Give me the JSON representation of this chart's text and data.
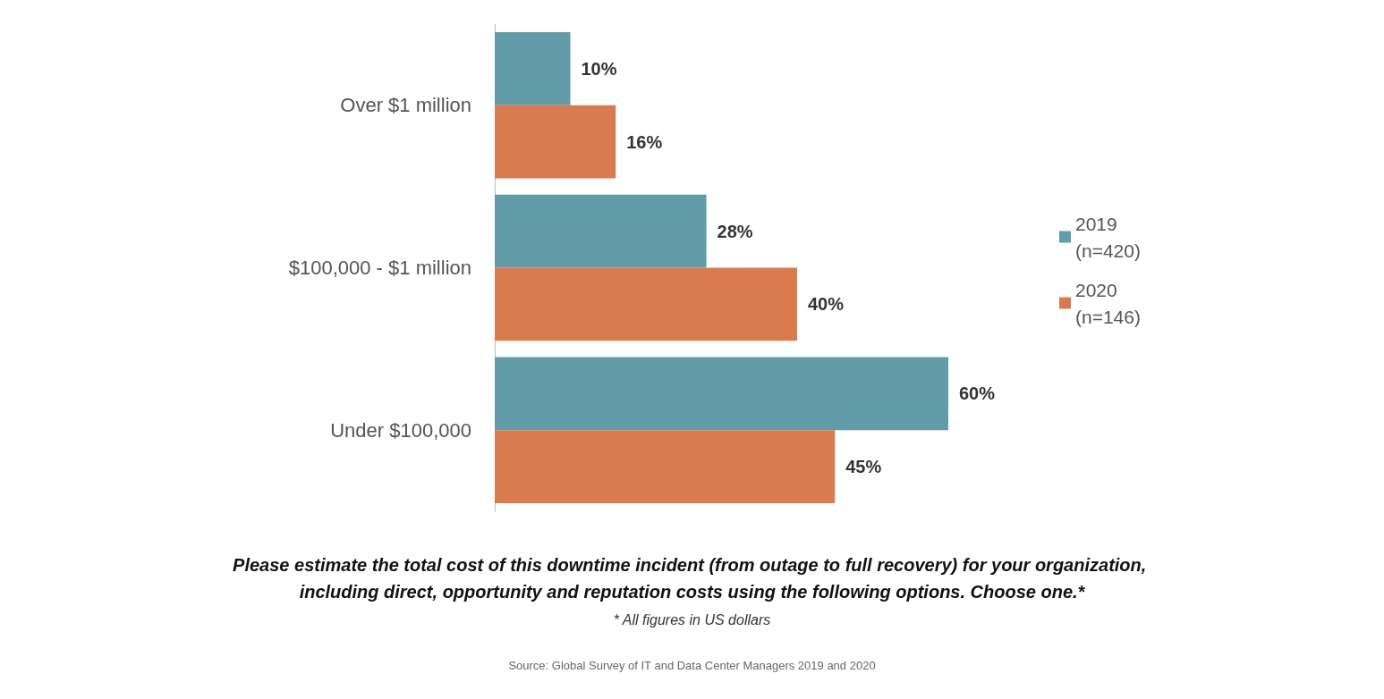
{
  "chart_data": {
    "type": "bar",
    "orientation": "horizontal",
    "title": "Please estimate the total cost of this downtime incident (from outage to full recovery) for your organization, including direct, opportunity and reputation costs using the following options. Choose one.*",
    "subtitle": "* All figures in US dollars",
    "annotations": [
      "Source: Global Survey of IT and Data Center Managers 2019 and 2020"
    ],
    "categories": [
      "Over $1 million",
      "$100,000 - $1 million",
      "Under $100,000"
    ],
    "series": [
      {
        "name": "2019 (n=420)",
        "color": "#619ca8",
        "values": [
          10,
          28,
          60
        ],
        "value_labels": [
          "10%",
          "28%",
          "60%"
        ]
      },
      {
        "name": "2020 (n=146)",
        "color": "#d97b4f",
        "values": [
          16,
          40,
          45
        ],
        "value_labels": [
          "16%",
          "40%",
          "45%"
        ]
      }
    ],
    "legend": "right"
  }
}
